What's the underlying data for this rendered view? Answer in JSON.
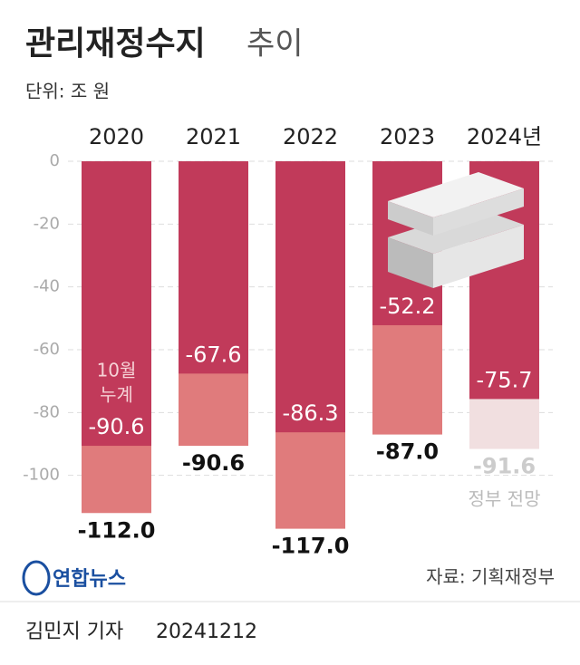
{
  "chart_data": {
    "type": "bar",
    "title": "관리재정수지",
    "title_suffix": "추이",
    "unit": "단위: 조 원",
    "categories": [
      "2020",
      "2021",
      "2022",
      "2023",
      "2024년"
    ],
    "series": [
      {
        "color": "#e07b7c",
        "colors": [
          "#e07b7c",
          "#e07b7c",
          "#e07b7c",
          "#e07b7c",
          "#f1dfe0"
        ],
        "values": [
          -112.0,
          -90.6,
          -117.0,
          -87.0,
          -91.6
        ],
        "value_labels": [
          "-112.0",
          "-90.6",
          "-117.0",
          "-87.0",
          "-91.6"
        ]
      },
      {
        "color": "#c13a5a",
        "values": [
          -90.6,
          -67.6,
          -86.3,
          -52.2,
          -75.7
        ]
      }
    ],
    "ylim": [
      -120,
      0
    ],
    "yticks": [
      0,
      -20,
      -40,
      -60,
      -80,
      -100
    ],
    "grid": true,
    "note": [
      "10월",
      "누계"
    ],
    "forecast_note": "정부 전망",
    "source": "자료: 기획재정부",
    "logo": "연합뉴스",
    "byline": "김민지 기자",
    "date": "20241212"
  }
}
